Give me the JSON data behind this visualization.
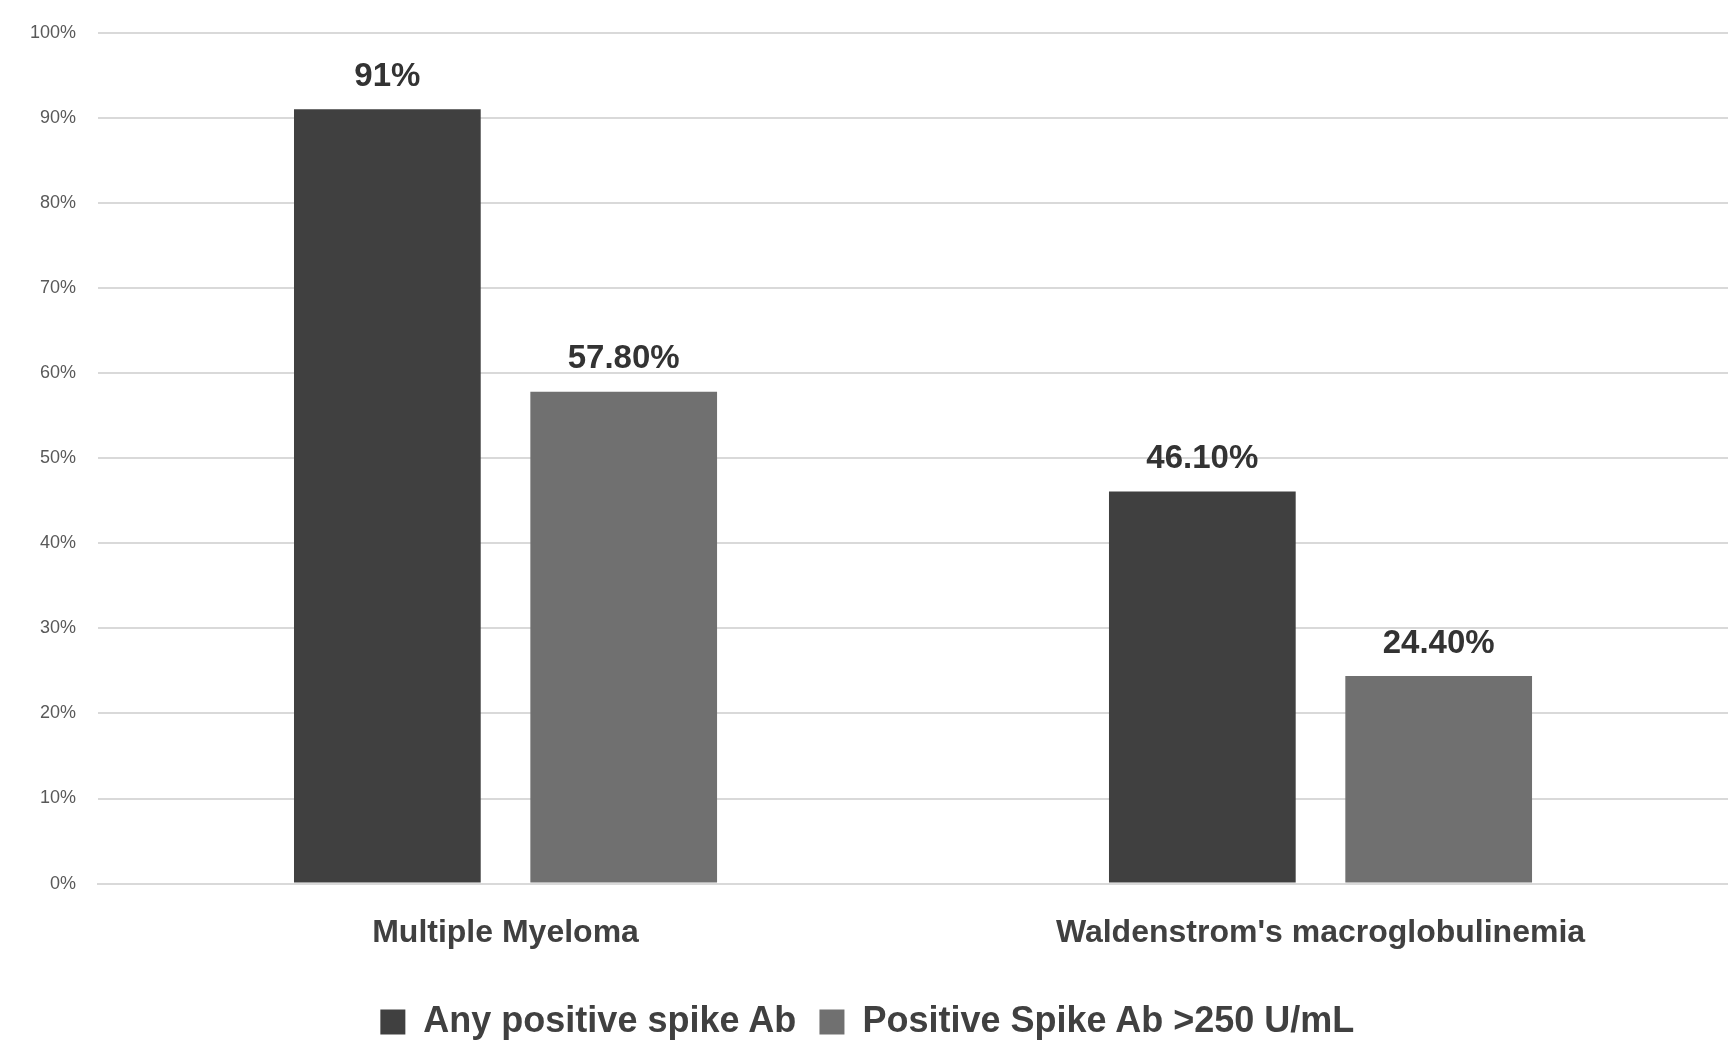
{
  "chart_data": {
    "type": "bar",
    "categories": [
      "Multiple Myeloma",
      "Waldenstrom's macroglobulinemia"
    ],
    "series": [
      {
        "name": "Any positive spike Ab",
        "color": "#404040",
        "values": [
          91,
          46.1
        ],
        "value_labels": [
          "91%",
          "46.10%"
        ]
      },
      {
        "name": "Positive Spike Ab >250 U/mL",
        "color": "#707070",
        "values": [
          57.8,
          24.4
        ],
        "value_labels": [
          "57.80%",
          "24.40%"
        ]
      }
    ],
    "ylim": [
      0,
      100
    ],
    "yticks": [
      {
        "value": 0,
        "label": "0%"
      },
      {
        "value": 10,
        "label": "10%"
      },
      {
        "value": 20,
        "label": "20%"
      },
      {
        "value": 30,
        "label": "30%"
      },
      {
        "value": 40,
        "label": "40%"
      },
      {
        "value": 50,
        "label": "50%"
      },
      {
        "value": 60,
        "label": "60%"
      },
      {
        "value": 70,
        "label": "70%"
      },
      {
        "value": 80,
        "label": "80%"
      },
      {
        "value": 90,
        "label": "90%"
      },
      {
        "value": 100,
        "label": "100%"
      }
    ],
    "grid": "y",
    "legend": "bottom"
  }
}
